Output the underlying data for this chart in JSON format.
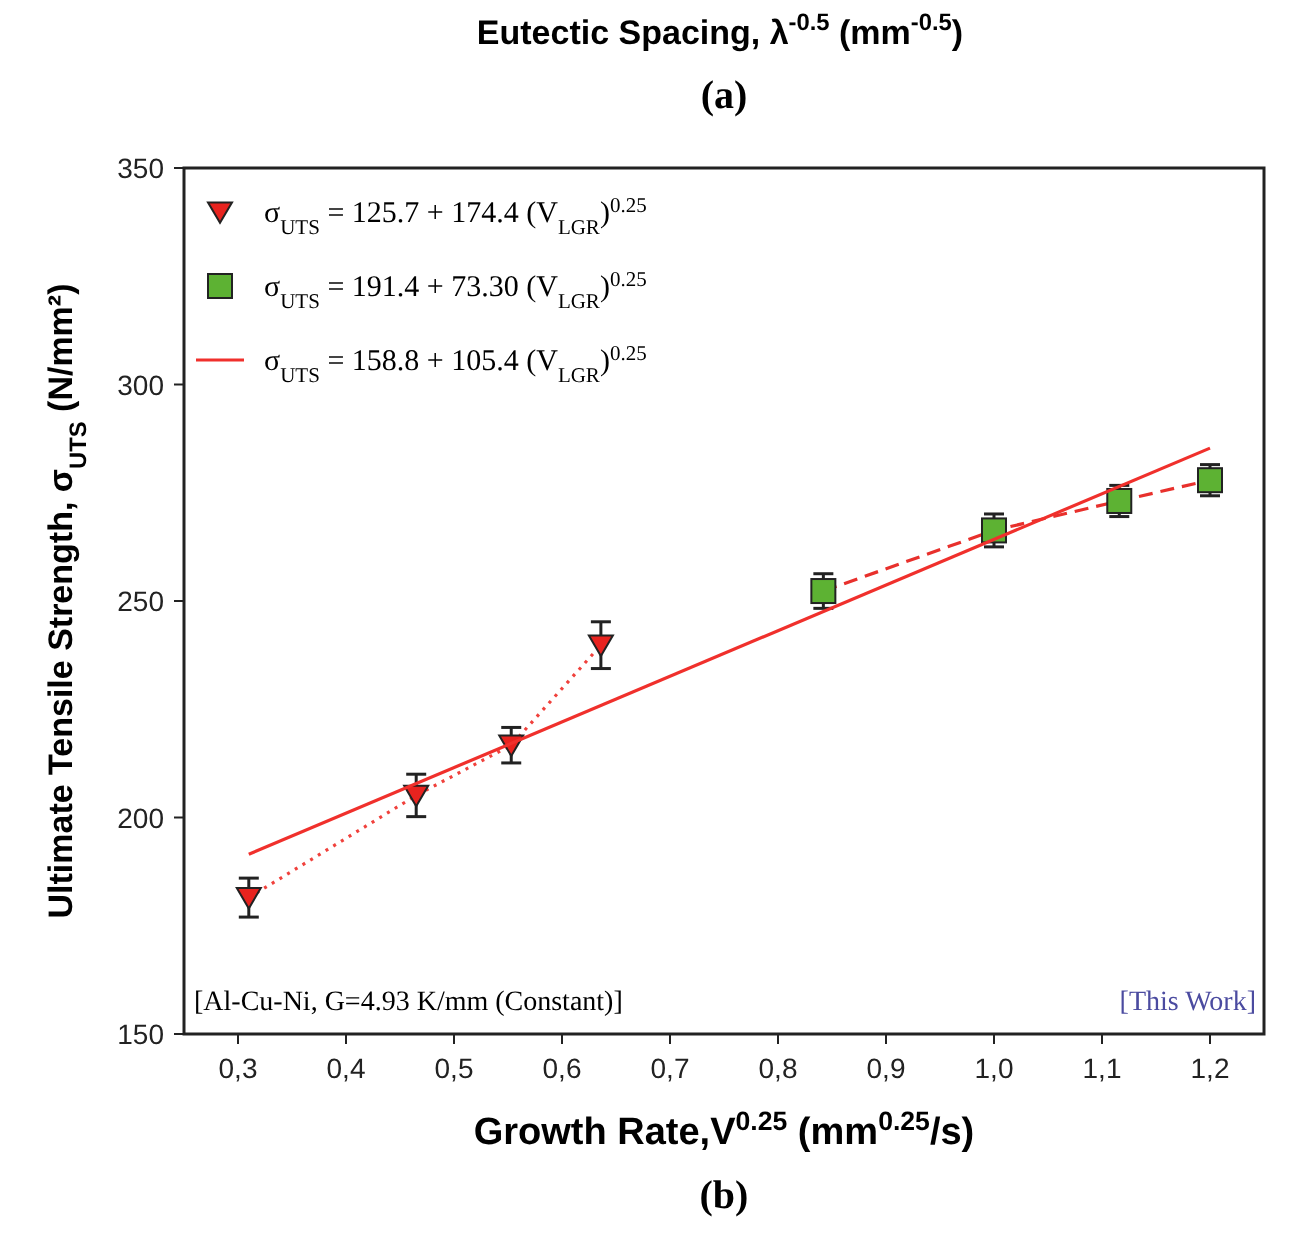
{
  "chart_data": {
    "type": "scatter",
    "xlabel": "Growth Rate,V$^{0.25}$ (mm$^{0.25}$/s)",
    "ylabel": "Ultimate Tensile Strength, σ$_{UTS}$ (N/mm²)",
    "annotations": [
      "Eutectic Spacing, λ$^{-0.5}$ (mm$^{-0.5}$)",
      "(a)",
      "[Al-Cu-Ni, G=4.93 K/mm (Constant)]",
      "[This Work]",
      "(b)"
    ],
    "xlim": [
      0.25,
      1.25
    ],
    "ylim": [
      150,
      350
    ],
    "xticks": [
      {
        "value": 0.3,
        "label": "0,3"
      },
      {
        "value": 0.4,
        "label": "0,4"
      },
      {
        "value": 0.5,
        "label": "0,5"
      },
      {
        "value": 0.6,
        "label": "0,6"
      },
      {
        "value": 0.7,
        "label": "0,7"
      },
      {
        "value": 0.8,
        "label": "0,8"
      },
      {
        "value": 0.9,
        "label": "0,9"
      },
      {
        "value": 1.0,
        "label": "1,0"
      },
      {
        "value": 1.1,
        "label": "1,1"
      },
      {
        "value": 1.2,
        "label": "1,2"
      }
    ],
    "yticks": [
      150,
      200,
      250,
      300,
      350
    ],
    "grid": false,
    "legend": "top left",
    "series": [
      {
        "type": "line",
        "color": "#f0413c",
        "line_style": "dotted",
        "x": [
          0.31,
          0.465,
          0.553,
          0.636
        ],
        "values": [
          181.5,
          205.1,
          216.7,
          239.8
        ]
      },
      {
        "type": "line",
        "color": "#e8302c",
        "line_style": "dashed",
        "x": [
          0.842,
          1.0,
          1.116,
          1.2
        ],
        "values": [
          252.3,
          266.3,
          273.1,
          277.9
        ]
      },
      {
        "name": "σ$_{UTS}$ = 125.7 + 174.4 (V$_{LGR}$)$^{0.25}$",
        "color": "#e8231f",
        "marker": "triangle",
        "x": [
          0.31,
          0.465,
          0.553,
          0.636
        ],
        "values": [
          181.5,
          205.1,
          216.7,
          239.8
        ],
        "errors": [
          4.5,
          4.9,
          4.1,
          5.4
        ]
      },
      {
        "name": "σ$_{UTS}$ = 191.4 + 73.30 (V$_{LGR}$)$^{0.25}$",
        "color": "#5db233",
        "marker": "square",
        "x": [
          0.842,
          1.0,
          1.116,
          1.2
        ],
        "values": [
          252.3,
          266.3,
          273.1,
          277.9
        ],
        "errors": [
          4,
          3.8,
          3.6,
          3.6
        ]
      },
      {
        "name": "σ$_{UTS}$ = 158.8 + 105.4 (V$_{LGR}$)$^{0.25}$",
        "type": "line",
        "color": "#f0302c",
        "line_style": "solid",
        "x": [
          0.31,
          1.2
        ],
        "values": [
          191.5,
          285.3
        ]
      }
    ]
  }
}
